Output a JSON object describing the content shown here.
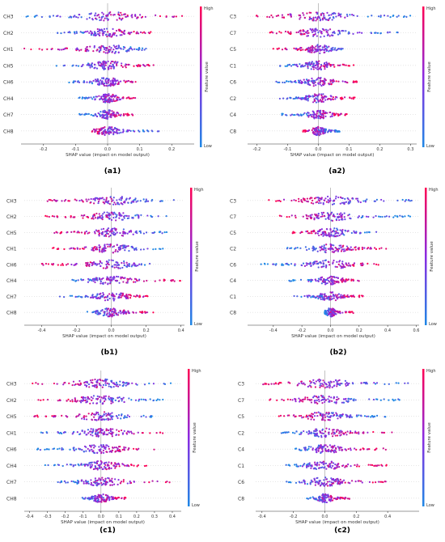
{
  "colorbar": {
    "high": "High",
    "low": "Low",
    "title": "Feature value",
    "low_color": "#1e88e5",
    "high_color": "#ff0052"
  },
  "chart_data": [
    {
      "type": "scatter",
      "panel": "(a1)",
      "title": "",
      "features": [
        "CH3",
        "CH2",
        "CH1",
        "CH5",
        "CH6",
        "CH4",
        "CH7",
        "CH8"
      ],
      "xticks": [
        "-0.2",
        "-0.1",
        "0.0",
        "0.1",
        "0.2"
      ],
      "xlim": [
        -0.27,
        0.27
      ],
      "xlabel": "SHAP value (impact on model output)",
      "spread": [
        [
          -0.26,
          0.24
        ],
        [
          -0.16,
          0.16
        ],
        [
          -0.26,
          0.12
        ],
        [
          -0.16,
          0.15
        ],
        [
          -0.12,
          0.1
        ],
        [
          -0.09,
          0.09
        ],
        [
          -0.09,
          0.08
        ],
        [
          -0.05,
          0.16
        ]
      ],
      "bias": [
        1,
        1,
        -1,
        1,
        1,
        1,
        1,
        -1
      ]
    },
    {
      "type": "scatter",
      "panel": "(a2)",
      "title": "",
      "features": [
        "C3",
        "C7",
        "C5",
        "C1",
        "C6",
        "C2",
        "C4",
        "C8"
      ],
      "xticks": [
        "-0.2",
        "-0.1",
        "0.0",
        "0.1",
        "0.2",
        "0.3"
      ],
      "xlim": [
        -0.23,
        0.32
      ],
      "xlabel": "SHAP value (impact on model output)",
      "spread": [
        [
          -0.22,
          0.3
        ],
        [
          -0.16,
          0.26
        ],
        [
          -0.15,
          0.08
        ],
        [
          -0.13,
          0.12
        ],
        [
          -0.14,
          0.13
        ],
        [
          -0.13,
          0.12
        ],
        [
          -0.12,
          0.1
        ],
        [
          -0.05,
          0.07
        ]
      ],
      "bias": [
        -1,
        -1,
        -1,
        1,
        1,
        1,
        1,
        -1
      ]
    },
    {
      "type": "scatter",
      "panel": "(b1)",
      "title": "",
      "features": [
        "CH3",
        "CH2",
        "CH5",
        "CH1",
        "CH6",
        "CH4",
        "CH7",
        "CH8"
      ],
      "xticks": [
        "-0.4",
        "-0.2",
        "0.0",
        "0.2",
        "0.4"
      ],
      "xlim": [
        -0.5,
        0.42
      ],
      "xlabel": "SHAP value (impact on model output)",
      "spread": [
        [
          -0.4,
          0.36
        ],
        [
          -0.42,
          0.32
        ],
        [
          -0.36,
          0.32
        ],
        [
          -0.34,
          0.3
        ],
        [
          -0.4,
          0.28
        ],
        [
          -0.24,
          0.4
        ],
        [
          -0.3,
          0.22
        ],
        [
          -0.16,
          0.26
        ]
      ],
      "bias": [
        -1,
        -1,
        -1,
        -1,
        -1,
        1,
        1,
        1
      ]
    },
    {
      "type": "scatter",
      "panel": "(b2)",
      "title": "",
      "features": [
        "C3",
        "C7",
        "C5",
        "C2",
        "C6",
        "C4",
        "C1",
        "C8"
      ],
      "xticks": [
        "-0.4",
        "-0.2",
        "0.0",
        "0.2",
        "0.4",
        "0.6"
      ],
      "xlim": [
        -0.58,
        0.62
      ],
      "xlabel": "SHAP value (impact on model output)",
      "spread": [
        [
          -0.44,
          0.58
        ],
        [
          -0.36,
          0.58
        ],
        [
          -0.3,
          0.34
        ],
        [
          -0.32,
          0.42
        ],
        [
          -0.5,
          0.34
        ],
        [
          -0.3,
          0.22
        ],
        [
          -0.28,
          0.24
        ],
        [
          -0.04,
          0.16
        ]
      ],
      "bias": [
        -1,
        -1,
        -1,
        1,
        1,
        1,
        1,
        1
      ]
    },
    {
      "type": "scatter",
      "panel": "(c1)",
      "title": "",
      "features": [
        "CH3",
        "CH2",
        "CH5",
        "CH1",
        "CH6",
        "CH4",
        "CH7",
        "CH8"
      ],
      "xticks": [
        "-0.4",
        "-0.3",
        "-0.2",
        "-0.1",
        "0.0",
        "0.1",
        "0.2",
        "0.3",
        "0.4"
      ],
      "xlim": [
        -0.43,
        0.45
      ],
      "xlabel": "SHAP value (impact on model output)",
      "spread": [
        [
          -0.4,
          0.4
        ],
        [
          -0.36,
          0.36
        ],
        [
          -0.38,
          0.3
        ],
        [
          -0.34,
          0.36
        ],
        [
          -0.36,
          0.3
        ],
        [
          -0.32,
          0.26
        ],
        [
          -0.26,
          0.4
        ],
        [
          -0.12,
          0.14
        ]
      ],
      "bias": [
        -1,
        -1,
        -1,
        1,
        1,
        1,
        1,
        1
      ]
    },
    {
      "type": "scatter",
      "panel": "(c2)",
      "title": "",
      "features": [
        "C3",
        "C7",
        "C5",
        "C2",
        "C4",
        "C1",
        "C6",
        "C8"
      ],
      "xticks": [
        "-0.4",
        "-0.2",
        "0.0",
        "0.2",
        "0.4"
      ],
      "xlim": [
        -0.44,
        0.6
      ],
      "xlabel": "SHAP value (impact on model output)",
      "spread": [
        [
          -0.4,
          0.56
        ],
        [
          -0.36,
          0.48
        ],
        [
          -0.3,
          0.4
        ],
        [
          -0.28,
          0.44
        ],
        [
          -0.22,
          0.4
        ],
        [
          -0.26,
          0.4
        ],
        [
          -0.26,
          0.4
        ],
        [
          -0.12,
          0.16
        ]
      ],
      "bias": [
        -1,
        -1,
        -1,
        1,
        1,
        1,
        1,
        1
      ]
    }
  ]
}
